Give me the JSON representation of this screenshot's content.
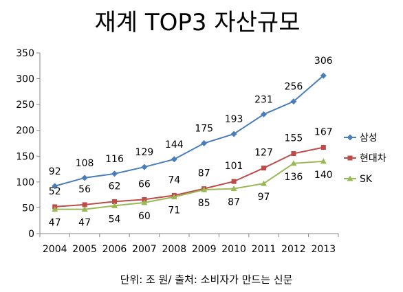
{
  "chart_data": {
    "type": "line",
    "title": "재계 TOP3 자산규모",
    "footnote": "단위: 조 원/ 출처: 소비자가 만드는 신문",
    "categories": [
      "2004",
      "2005",
      "2006",
      "2007",
      "2008",
      "2009",
      "2010",
      "2011",
      "2012",
      "2013"
    ],
    "series": [
      {
        "name": "삼성",
        "color": "#4a7ebb",
        "marker": "diamond",
        "values": [
          92,
          108,
          116,
          129,
          144,
          175,
          193,
          231,
          256,
          306
        ]
      },
      {
        "name": "현대차",
        "color": "#be4b48",
        "marker": "square",
        "values": [
          52,
          56,
          62,
          66,
          74,
          87,
          101,
          127,
          155,
          167
        ]
      },
      {
        "name": "SK",
        "color": "#98b954",
        "marker": "triangle",
        "values": [
          47,
          47,
          54,
          60,
          71,
          85,
          87,
          97,
          136,
          140
        ]
      }
    ],
    "ylim": [
      0,
      350
    ],
    "yticks": [
      0,
      50,
      100,
      150,
      200,
      250,
      300,
      350
    ],
    "grid": false,
    "legend": "right"
  }
}
